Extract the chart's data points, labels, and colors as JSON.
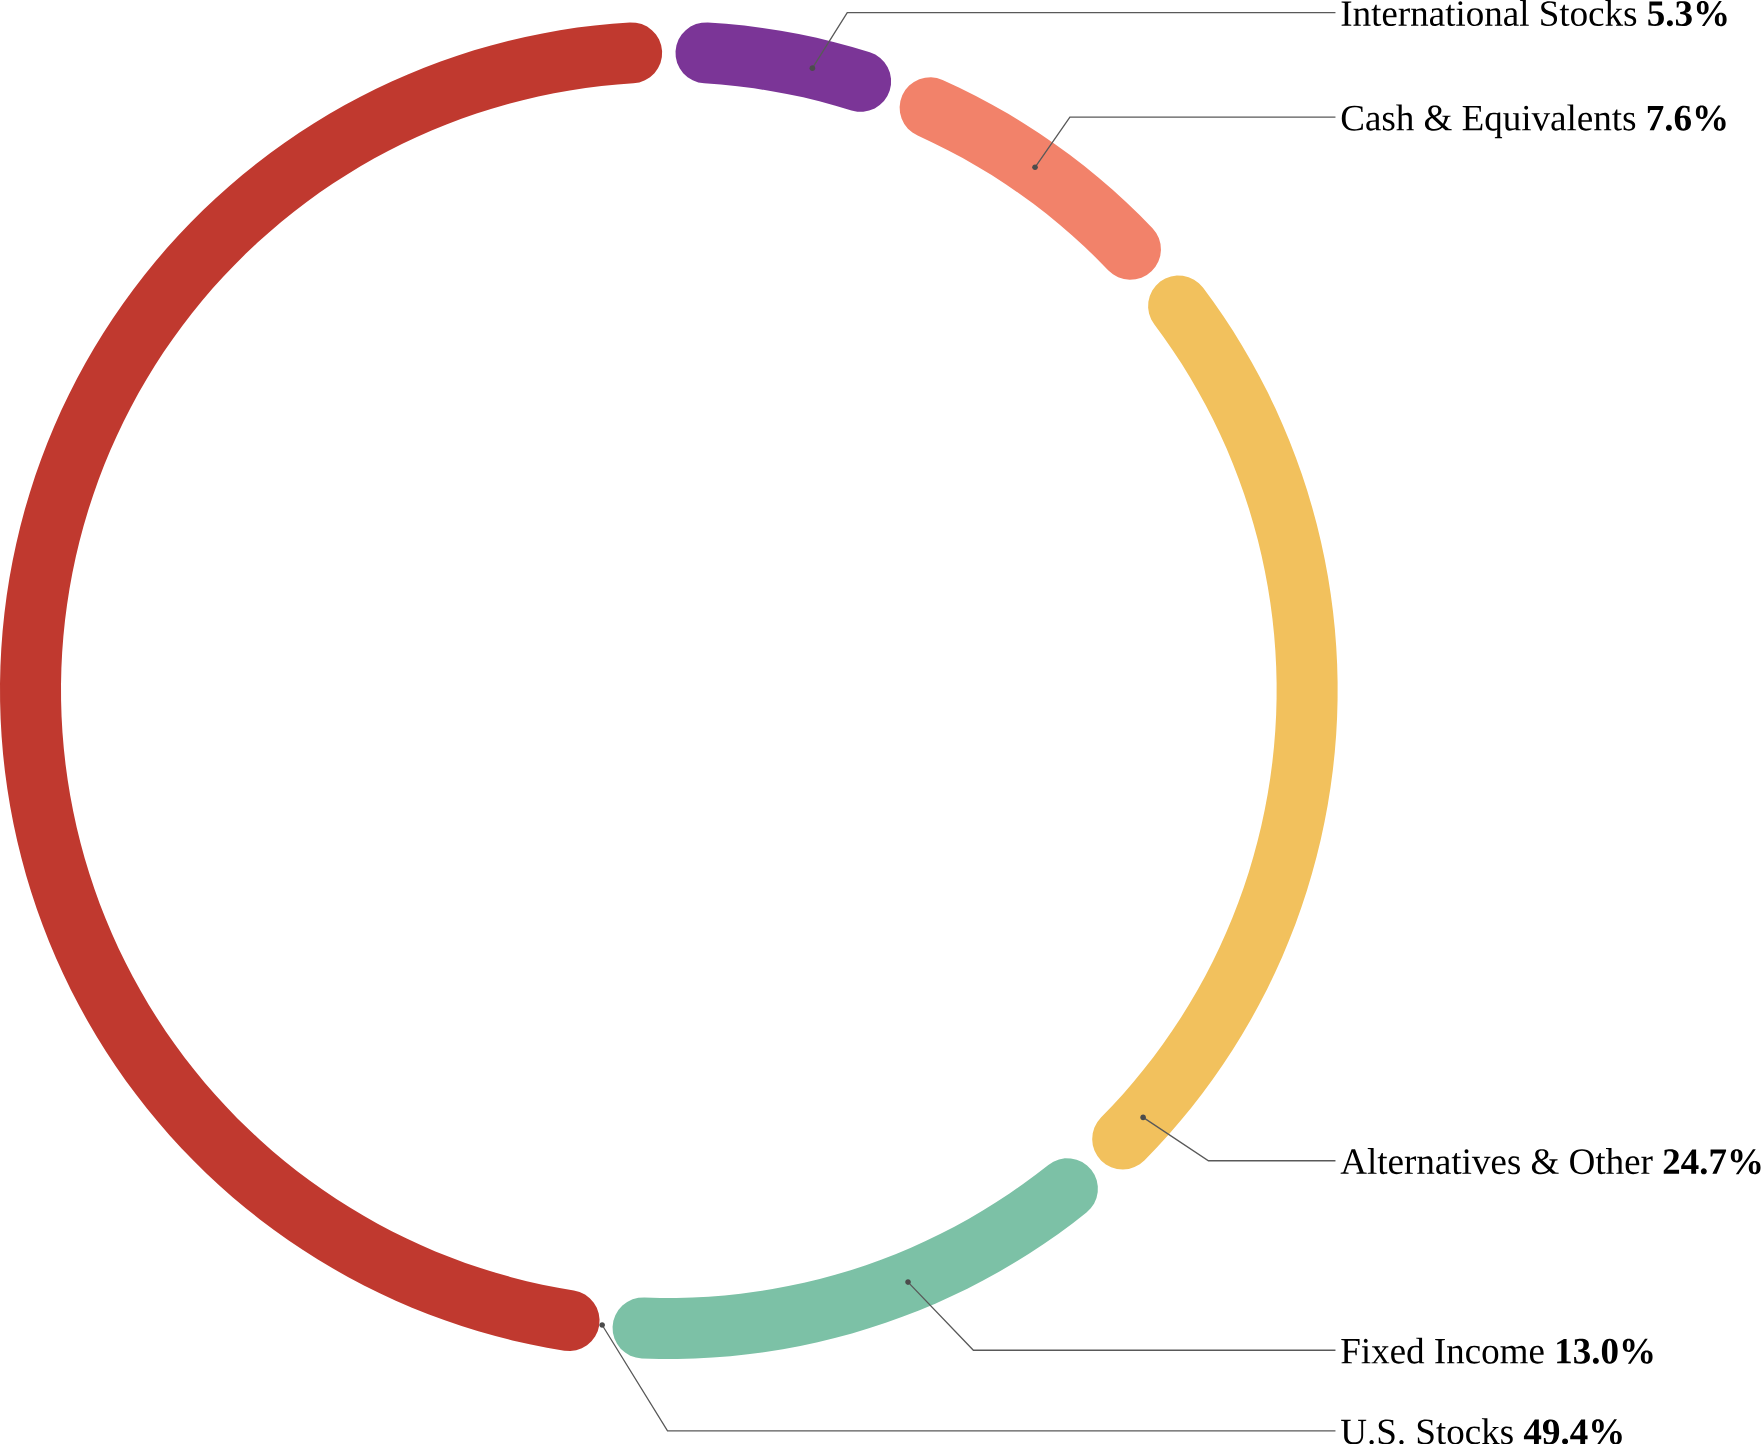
{
  "chart_data": {
    "type": "donut",
    "categories": [
      "International Stocks",
      "Cash & Equivalents",
      "Alternatives & Other",
      "Fixed Income",
      "U.S. Stocks"
    ],
    "values": [
      5.3,
      7.6,
      24.7,
      13.0,
      49.4
    ],
    "value_labels": [
      "5.3%",
      "7.6%",
      "24.7%",
      "13.0%",
      "49.4%"
    ],
    "colors": [
      "#7b3597",
      "#f2826a",
      "#f2c15d",
      "#7cc1a6",
      "#c0392f"
    ]
  }
}
